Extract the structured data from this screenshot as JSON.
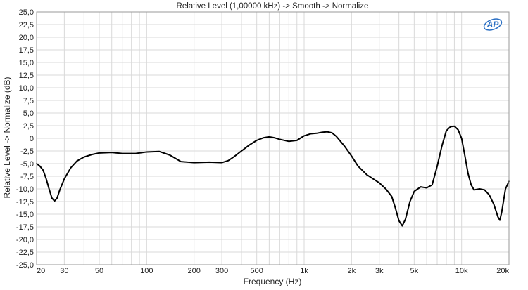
{
  "chart_data": {
    "type": "line",
    "title": "Relative Level (1,00000 kHz) -> Smooth -> Normalize",
    "xlabel": "Frequency (Hz)",
    "ylabel": "Relative Level -> Normalize (dB)",
    "x_scale": "log",
    "xlim": [
      20,
      20000
    ],
    "ylim": [
      -25,
      25
    ],
    "grid": true,
    "logo_text": "AP",
    "colors": {
      "line": "#000000",
      "grid": "#d9d9d9",
      "frame": "#9a9a9a",
      "logo": "#2a6fc4"
    },
    "x_ticks": [
      {
        "value": 20,
        "label": "20"
      },
      {
        "value": 30,
        "label": "30"
      },
      {
        "value": 50,
        "label": "50"
      },
      {
        "value": 100,
        "label": "100"
      },
      {
        "value": 200,
        "label": "200"
      },
      {
        "value": 300,
        "label": "300"
      },
      {
        "value": 500,
        "label": "500"
      },
      {
        "value": 1000,
        "label": "1k"
      },
      {
        "value": 2000,
        "label": "2k"
      },
      {
        "value": 3000,
        "label": "3k"
      },
      {
        "value": 5000,
        "label": "5k"
      },
      {
        "value": 10000,
        "label": "10k"
      },
      {
        "value": 20000,
        "label": "20k"
      }
    ],
    "y_ticks": [
      {
        "value": 25,
        "label": "25,0"
      },
      {
        "value": 22.5,
        "label": "22,5"
      },
      {
        "value": 20,
        "label": "20,0"
      },
      {
        "value": 17.5,
        "label": "17,5"
      },
      {
        "value": 15,
        "label": "15,0"
      },
      {
        "value": 12.5,
        "label": "12,5"
      },
      {
        "value": 10,
        "label": "10,0"
      },
      {
        "value": 7.5,
        "label": "7,5"
      },
      {
        "value": 5,
        "label": "5,0"
      },
      {
        "value": 2.5,
        "label": "2,5"
      },
      {
        "value": 0,
        "label": "0"
      },
      {
        "value": -2.5,
        "label": "-2,5"
      },
      {
        "value": -5,
        "label": "-5,0"
      },
      {
        "value": -7.5,
        "label": "-7,5"
      },
      {
        "value": -10,
        "label": "-10,0"
      },
      {
        "value": -12.5,
        "label": "-12,5"
      },
      {
        "value": -15,
        "label": "-15,0"
      },
      {
        "value": -17.5,
        "label": "-17,5"
      },
      {
        "value": -20,
        "label": "-20,0"
      },
      {
        "value": -22.5,
        "label": "-22,5"
      },
      {
        "value": -25,
        "label": "-25,0"
      }
    ],
    "series": [
      {
        "points": [
          [
            20,
            -5.0
          ],
          [
            21,
            -5.5
          ],
          [
            22,
            -6.3
          ],
          [
            23,
            -8.0
          ],
          [
            24,
            -10.0
          ],
          [
            25,
            -11.8
          ],
          [
            26,
            -12.4
          ],
          [
            27,
            -11.8
          ],
          [
            28,
            -10.3
          ],
          [
            30,
            -8.0
          ],
          [
            33,
            -5.8
          ],
          [
            36,
            -4.5
          ],
          [
            40,
            -3.7
          ],
          [
            45,
            -3.2
          ],
          [
            50,
            -2.9
          ],
          [
            60,
            -2.8
          ],
          [
            70,
            -3.0
          ],
          [
            85,
            -3.0
          ],
          [
            100,
            -2.7
          ],
          [
            120,
            -2.6
          ],
          [
            140,
            -3.3
          ],
          [
            165,
            -4.6
          ],
          [
            200,
            -4.8
          ],
          [
            250,
            -4.7
          ],
          [
            300,
            -4.8
          ],
          [
            330,
            -4.4
          ],
          [
            360,
            -3.6
          ],
          [
            400,
            -2.5
          ],
          [
            450,
            -1.3
          ],
          [
            500,
            -0.4
          ],
          [
            550,
            0.1
          ],
          [
            600,
            0.3
          ],
          [
            650,
            0.1
          ],
          [
            700,
            -0.2
          ],
          [
            800,
            -0.6
          ],
          [
            900,
            -0.4
          ],
          [
            1000,
            0.5
          ],
          [
            1100,
            0.9
          ],
          [
            1200,
            1.0
          ],
          [
            1300,
            1.2
          ],
          [
            1400,
            1.3
          ],
          [
            1500,
            1.1
          ],
          [
            1600,
            0.4
          ],
          [
            1800,
            -1.5
          ],
          [
            2000,
            -3.5
          ],
          [
            2200,
            -5.5
          ],
          [
            2500,
            -7.2
          ],
          [
            3000,
            -8.8
          ],
          [
            3300,
            -10.0
          ],
          [
            3600,
            -11.5
          ],
          [
            3800,
            -13.8
          ],
          [
            4000,
            -16.3
          ],
          [
            4200,
            -17.3
          ],
          [
            4400,
            -16.0
          ],
          [
            4700,
            -12.5
          ],
          [
            5000,
            -10.5
          ],
          [
            5500,
            -9.6
          ],
          [
            6000,
            -9.8
          ],
          [
            6500,
            -9.2
          ],
          [
            7000,
            -5.5
          ],
          [
            7500,
            -1.5
          ],
          [
            8000,
            1.5
          ],
          [
            8500,
            2.3
          ],
          [
            9000,
            2.4
          ],
          [
            9500,
            1.7
          ],
          [
            10000,
            0.0
          ],
          [
            10500,
            -3.5
          ],
          [
            11000,
            -7.0
          ],
          [
            11500,
            -9.2
          ],
          [
            12000,
            -10.2
          ],
          [
            13000,
            -10.0
          ],
          [
            14000,
            -10.2
          ],
          [
            15000,
            -11.2
          ],
          [
            16000,
            -13.0
          ],
          [
            17000,
            -15.5
          ],
          [
            17500,
            -16.2
          ],
          [
            18000,
            -14.5
          ],
          [
            19000,
            -10.0
          ],
          [
            20000,
            -8.5
          ]
        ]
      }
    ]
  }
}
